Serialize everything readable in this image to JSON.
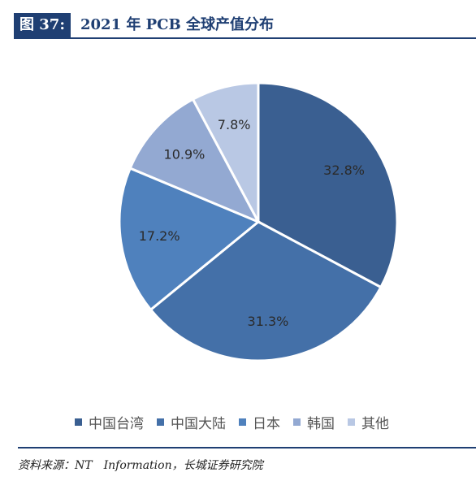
{
  "figure": {
    "label": "图 37:",
    "title": "2021 年 PCB 全球产值分布"
  },
  "chart_data": {
    "type": "pie",
    "title": "2021 年 PCB 全球产值分布",
    "categories": [
      "中国台湾",
      "中国大陆",
      "日本",
      "韩国",
      "其他"
    ],
    "values": [
      32.8,
      31.3,
      17.2,
      10.9,
      7.8
    ],
    "value_labels": [
      "32.8%",
      "31.3%",
      "17.2%",
      "10.9%",
      "7.8%"
    ],
    "colors": [
      "#3a5f91",
      "#4470a8",
      "#4f81bd",
      "#93a9d2",
      "#b9c8e4"
    ],
    "start_angle": "12 o'clock",
    "direction": "clockwise",
    "legend_position": "bottom"
  },
  "source": "资料来源：NT　Information，长城证券研究院"
}
